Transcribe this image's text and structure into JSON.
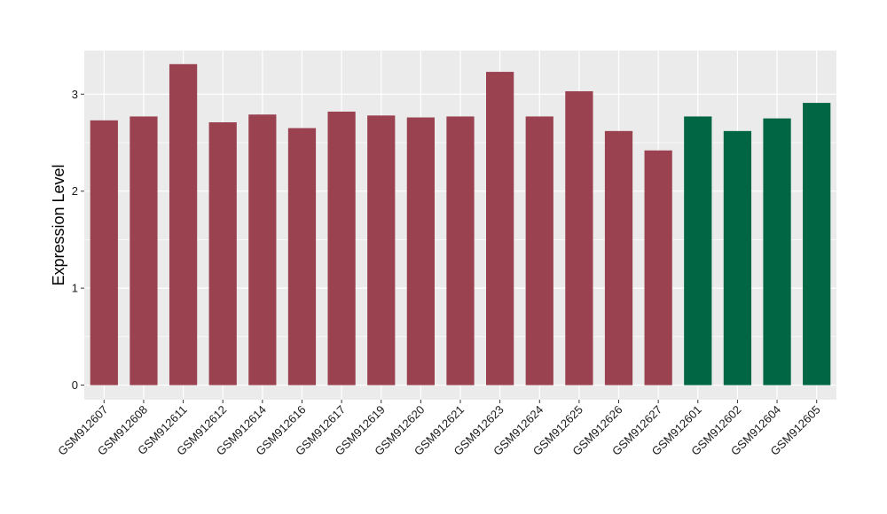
{
  "chart_data": {
    "type": "bar",
    "title": "",
    "xlabel": "",
    "ylabel": "Expression Level",
    "ylim": [
      -0.15,
      3.45
    ],
    "yticks": [
      0,
      1,
      2,
      3
    ],
    "grid": true,
    "categories": [
      "GSM912607",
      "GSM912608",
      "GSM912611",
      "GSM912612",
      "GSM912614",
      "GSM912616",
      "GSM912617",
      "GSM912619",
      "GSM912620",
      "GSM912621",
      "GSM912623",
      "GSM912624",
      "GSM912625",
      "GSM912626",
      "GSM912627",
      "GSM912601",
      "GSM912602",
      "GSM912604",
      "GSM912605"
    ],
    "values": [
      2.73,
      2.77,
      3.31,
      2.71,
      2.79,
      2.65,
      2.82,
      2.78,
      2.76,
      2.77,
      3.23,
      2.77,
      3.03,
      2.62,
      2.42,
      2.77,
      2.62,
      2.75,
      2.91
    ],
    "bar_colors": [
      "#9a4250",
      "#9a4250",
      "#9a4250",
      "#9a4250",
      "#9a4250",
      "#9a4250",
      "#9a4250",
      "#9a4250",
      "#9a4250",
      "#9a4250",
      "#9a4250",
      "#9a4250",
      "#9a4250",
      "#9a4250",
      "#9a4250",
      "#006644",
      "#006644",
      "#006644",
      "#006644"
    ],
    "panel_color": "#ebebeb",
    "grid_color": "#ffffff"
  }
}
